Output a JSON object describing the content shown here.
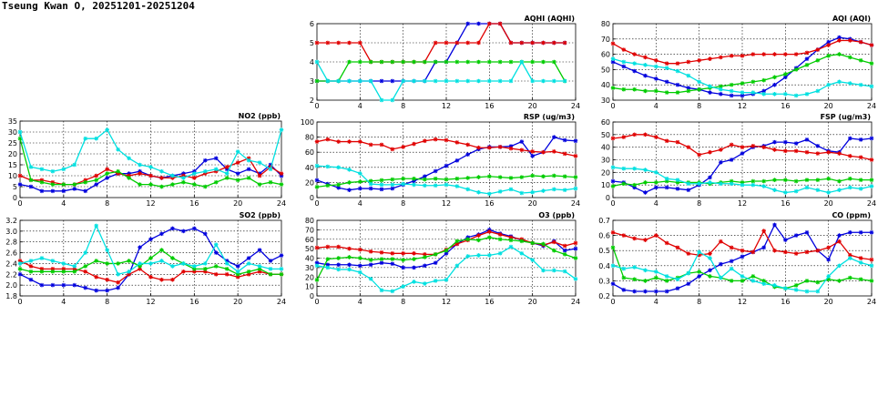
{
  "title": "Tseung Kwan O, 20251201-20251204",
  "colors": {
    "blue": "#0000dd",
    "red": "#e00000",
    "green": "#00cc00",
    "cyan": "#00e0e0"
  },
  "chart_data": [
    {
      "id": "aqhi",
      "type": "line",
      "title": "AQHI (AQHI)",
      "xlim": [
        0,
        24
      ],
      "xticks": [
        0,
        4,
        8,
        12,
        16,
        20,
        24
      ],
      "ylim": [
        2,
        6
      ],
      "yticks": [
        2,
        3,
        4,
        5,
        6
      ],
      "series": [
        {
          "color": "blue",
          "values": [
            3,
            3,
            3,
            3,
            3,
            3,
            3,
            3,
            3,
            3,
            3,
            4,
            4,
            5,
            6,
            6,
            6,
            6,
            5,
            5,
            5,
            5,
            5,
            5
          ]
        },
        {
          "color": "red",
          "values": [
            5,
            5,
            5,
            5,
            5,
            4,
            4,
            4,
            4,
            4,
            4,
            5,
            5,
            5,
            5,
            5,
            6,
            6,
            5,
            5,
            5,
            5,
            5,
            5
          ]
        },
        {
          "color": "green",
          "values": [
            3,
            3,
            3,
            4,
            4,
            4,
            4,
            4,
            4,
            4,
            4,
            4,
            4,
            4,
            4,
            4,
            4,
            4,
            4,
            4,
            4,
            4,
            4,
            3
          ]
        },
        {
          "color": "cyan",
          "values": [
            4,
            3,
            3,
            3,
            3,
            3,
            2,
            2,
            3,
            3,
            3,
            3,
            3,
            3,
            3,
            3,
            3,
            3,
            3,
            4,
            3,
            3,
            3,
            3
          ]
        }
      ]
    },
    {
      "id": "aqi",
      "type": "line",
      "title": "AQI (AQI)",
      "xlim": [
        0,
        24
      ],
      "xticks": [
        0,
        4,
        8,
        12,
        16,
        20,
        24
      ],
      "ylim": [
        30,
        80
      ],
      "yticks": [
        30,
        40,
        50,
        60,
        70,
        80
      ],
      "series": [
        {
          "color": "blue",
          "values": [
            55,
            52,
            49,
            46,
            44,
            42,
            40,
            38,
            37,
            35,
            34,
            33,
            33,
            34,
            36,
            40,
            45,
            51,
            57,
            63,
            68,
            71,
            70,
            68,
            66
          ]
        },
        {
          "color": "red",
          "values": [
            67,
            63,
            60,
            58,
            56,
            54,
            54,
            55,
            56,
            57,
            58,
            59,
            59,
            60,
            60,
            60,
            60,
            60,
            61,
            63,
            66,
            69,
            69,
            68,
            66
          ]
        },
        {
          "color": "green",
          "values": [
            38,
            37,
            37,
            36,
            36,
            35,
            35,
            36,
            37,
            38,
            39,
            40,
            41,
            42,
            43,
            45,
            47,
            50,
            53,
            56,
            59,
            60,
            58,
            56,
            54
          ]
        },
        {
          "color": "cyan",
          "values": [
            57,
            55,
            54,
            53,
            52,
            51,
            49,
            46,
            42,
            39,
            37,
            36,
            35,
            35,
            34,
            34,
            34,
            33,
            34,
            36,
            40,
            42,
            41,
            40,
            39
          ]
        }
      ]
    },
    {
      "id": "no2",
      "type": "line",
      "title": "NO2 (ppb)",
      "xlim": [
        0,
        24
      ],
      "xticks": [
        0,
        4,
        8,
        12,
        16,
        20,
        24
      ],
      "ylim": [
        0,
        35
      ],
      "yticks": [
        0,
        5,
        10,
        15,
        20,
        25,
        30,
        35
      ],
      "series": [
        {
          "color": "blue",
          "values": [
            6,
            5,
            3,
            3,
            3,
            4,
            3,
            6,
            9,
            11,
            11,
            12,
            10,
            9,
            10,
            11,
            12,
            17,
            18,
            13,
            11,
            13,
            11,
            15,
            10
          ]
        },
        {
          "color": "red",
          "values": [
            10,
            8,
            8,
            7,
            6,
            6,
            8,
            10,
            13,
            11,
            10,
            11,
            10,
            9,
            9,
            10,
            9,
            11,
            12,
            14,
            16,
            18,
            10,
            14,
            11
          ]
        },
        {
          "color": "green",
          "values": [
            27,
            8,
            7,
            6,
            6,
            6,
            7,
            8,
            11,
            12,
            9,
            6,
            6,
            5,
            6,
            7,
            6,
            5,
            7,
            9,
            8,
            9,
            6,
            7,
            6
          ]
        },
        {
          "color": "cyan",
          "values": [
            30,
            14,
            13,
            12,
            13,
            15,
            27,
            27,
            31,
            22,
            18,
            15,
            14,
            12,
            10,
            9,
            11,
            12,
            13,
            11,
            21,
            17,
            16,
            13,
            31
          ]
        }
      ]
    },
    {
      "id": "rsp",
      "type": "line",
      "title": "RSP (ug/m3)",
      "xlim": [
        0,
        24
      ],
      "xticks": [
        0,
        4,
        8,
        12,
        16,
        20,
        24
      ],
      "ylim": [
        0,
        100
      ],
      "yticks": [
        0,
        20,
        40,
        60,
        80,
        100
      ],
      "series": [
        {
          "color": "blue",
          "values": [
            23,
            18,
            13,
            10,
            12,
            12,
            11,
            12,
            17,
            22,
            28,
            35,
            42,
            49,
            57,
            64,
            67,
            67,
            68,
            74,
            55,
            60,
            80,
            76,
            75
          ]
        },
        {
          "color": "red",
          "values": [
            74,
            77,
            74,
            74,
            74,
            70,
            70,
            64,
            67,
            71,
            75,
            77,
            76,
            73,
            70,
            66,
            66,
            67,
            65,
            63,
            61,
            60,
            61,
            58,
            55
          ]
        },
        {
          "color": "green",
          "values": [
            14,
            16,
            17,
            20,
            21,
            22,
            23,
            24,
            25,
            25,
            24,
            25,
            24,
            25,
            26,
            27,
            28,
            27,
            26,
            27,
            29,
            28,
            29,
            28,
            27
          ]
        },
        {
          "color": "cyan",
          "values": [
            42,
            41,
            40,
            37,
            32,
            18,
            17,
            17,
            18,
            17,
            16,
            16,
            17,
            15,
            11,
            7,
            5,
            8,
            11,
            6,
            7,
            9,
            11,
            10,
            12
          ]
        }
      ]
    },
    {
      "id": "fsp",
      "type": "line",
      "title": "FSP (ug/m3)",
      "xlim": [
        0,
        24
      ],
      "xticks": [
        0,
        4,
        8,
        12,
        16,
        20,
        24
      ],
      "ylim": [
        0,
        60
      ],
      "yticks": [
        0,
        10,
        20,
        30,
        40,
        50,
        60
      ],
      "series": [
        {
          "color": "blue",
          "values": [
            13,
            12,
            8,
            4,
            8,
            8,
            7,
            6,
            10,
            16,
            28,
            30,
            35,
            40,
            41,
            44,
            44,
            43,
            46,
            41,
            37,
            36,
            47,
            46,
            47
          ]
        },
        {
          "color": "red",
          "values": [
            47,
            48,
            50,
            50,
            48,
            45,
            44,
            40,
            34,
            36,
            38,
            42,
            40,
            41,
            40,
            38,
            37,
            37,
            36,
            35,
            36,
            35,
            33,
            32,
            30
          ]
        },
        {
          "color": "green",
          "values": [
            9,
            11,
            10,
            12,
            12,
            13,
            12,
            12,
            12,
            11,
            12,
            13,
            12,
            13,
            13,
            14,
            14,
            13,
            14,
            14,
            15,
            13,
            15,
            14,
            14
          ]
        },
        {
          "color": "cyan",
          "values": [
            24,
            23,
            23,
            22,
            20,
            15,
            14,
            11,
            11,
            12,
            11,
            11,
            10,
            10,
            9,
            6,
            4,
            5,
            8,
            6,
            4,
            6,
            8,
            7,
            9
          ]
        }
      ]
    },
    {
      "id": "so2",
      "type": "line",
      "title": "SO2 (ppb)",
      "xlim": [
        0,
        24
      ],
      "xticks": [
        0,
        4,
        8,
        12,
        16,
        20,
        24
      ],
      "ylim": [
        1.8,
        3.2
      ],
      "yticks": [
        1.8,
        2.0,
        2.2,
        2.4,
        2.6,
        2.8,
        3.0,
        3.2
      ],
      "series": [
        {
          "color": "blue",
          "values": [
            2.2,
            2.1,
            2.0,
            2.0,
            2.0,
            2.0,
            1.95,
            1.9,
            1.9,
            1.95,
            2.2,
            2.7,
            2.85,
            2.95,
            3.05,
            3.0,
            3.05,
            2.95,
            2.6,
            2.45,
            2.35,
            2.5,
            2.65,
            2.45,
            2.55
          ]
        },
        {
          "color": "red",
          "values": [
            2.45,
            2.35,
            2.3,
            2.3,
            2.3,
            2.3,
            2.25,
            2.15,
            2.1,
            2.05,
            2.2,
            2.3,
            2.15,
            2.1,
            2.1,
            2.25,
            2.25,
            2.25,
            2.2,
            2.2,
            2.15,
            2.2,
            2.25,
            2.2,
            2.2
          ]
        },
        {
          "color": "green",
          "values": [
            2.3,
            2.25,
            2.25,
            2.25,
            2.25,
            2.25,
            2.35,
            2.45,
            2.4,
            2.4,
            2.45,
            2.35,
            2.5,
            2.65,
            2.5,
            2.4,
            2.3,
            2.3,
            2.35,
            2.3,
            2.2,
            2.25,
            2.3,
            2.2,
            2.2
          ]
        },
        {
          "color": "cyan",
          "values": [
            2.4,
            2.45,
            2.5,
            2.45,
            2.4,
            2.35,
            2.6,
            3.1,
            2.65,
            2.2,
            2.25,
            2.4,
            2.4,
            2.45,
            2.35,
            2.4,
            2.35,
            2.4,
            2.75,
            2.4,
            2.25,
            2.4,
            2.35,
            2.3,
            2.3
          ]
        }
      ]
    },
    {
      "id": "o3",
      "type": "line",
      "title": "O3 (ppb)",
      "xlim": [
        0,
        24
      ],
      "xticks": [
        0,
        4,
        8,
        12,
        16,
        20,
        24
      ],
      "ylim": [
        0,
        80
      ],
      "yticks": [
        0,
        10,
        20,
        30,
        40,
        50,
        60,
        70,
        80
      ],
      "series": [
        {
          "color": "blue",
          "values": [
            35,
            33,
            33,
            33,
            32,
            33,
            35,
            34,
            30,
            30,
            32,
            35,
            45,
            55,
            62,
            65,
            70,
            66,
            63,
            59,
            56,
            53,
            58,
            48,
            50
          ]
        },
        {
          "color": "red",
          "values": [
            51,
            52,
            52,
            50,
            49,
            47,
            46,
            45,
            45,
            45,
            44,
            44,
            49,
            55,
            59,
            64,
            68,
            65,
            62,
            60,
            56,
            54,
            57,
            53,
            56
          ]
        },
        {
          "color": "green",
          "values": [
            17,
            39,
            40,
            41,
            40,
            38,
            39,
            39,
            38,
            39,
            41,
            44,
            48,
            58,
            60,
            59,
            62,
            60,
            59,
            58,
            56,
            55,
            48,
            44,
            40
          ]
        },
        {
          "color": "cyan",
          "values": [
            32,
            30,
            28,
            28,
            25,
            18,
            6,
            5,
            10,
            15,
            13,
            16,
            17,
            32,
            42,
            43,
            43,
            45,
            52,
            45,
            38,
            27,
            27,
            26,
            18
          ]
        }
      ]
    },
    {
      "id": "co",
      "type": "line",
      "title": "CO (ppm)",
      "xlim": [
        0,
        24
      ],
      "xticks": [
        0,
        4,
        8,
        12,
        16,
        20,
        24
      ],
      "ylim": [
        0.2,
        0.7
      ],
      "yticks": [
        0.2,
        0.3,
        0.4,
        0.5,
        0.6,
        0.7
      ],
      "series": [
        {
          "color": "blue",
          "values": [
            0.28,
            0.24,
            0.23,
            0.23,
            0.23,
            0.23,
            0.25,
            0.28,
            0.33,
            0.37,
            0.41,
            0.43,
            0.46,
            0.49,
            0.52,
            0.67,
            0.57,
            0.6,
            0.62,
            0.5,
            0.44,
            0.6,
            0.62,
            0.62,
            0.62
          ]
        },
        {
          "color": "red",
          "values": [
            0.62,
            0.6,
            0.58,
            0.57,
            0.6,
            0.55,
            0.52,
            0.48,
            0.47,
            0.48,
            0.56,
            0.52,
            0.5,
            0.49,
            0.63,
            0.5,
            0.49,
            0.48,
            0.49,
            0.5,
            0.52,
            0.56,
            0.47,
            0.45,
            0.44
          ]
        },
        {
          "color": "green",
          "values": [
            0.52,
            0.32,
            0.31,
            0.3,
            0.32,
            0.3,
            0.32,
            0.35,
            0.36,
            0.33,
            0.32,
            0.3,
            0.3,
            0.33,
            0.3,
            0.26,
            0.25,
            0.27,
            0.3,
            0.29,
            0.31,
            0.3,
            0.32,
            0.31,
            0.3
          ]
        },
        {
          "color": "cyan",
          "values": [
            0.4,
            0.38,
            0.39,
            0.37,
            0.36,
            0.33,
            0.31,
            0.35,
            0.49,
            0.45,
            0.32,
            0.38,
            0.33,
            0.3,
            0.28,
            0.27,
            0.25,
            0.24,
            0.23,
            0.23,
            0.33,
            0.4,
            0.45,
            0.42,
            0.4
          ]
        }
      ]
    }
  ]
}
